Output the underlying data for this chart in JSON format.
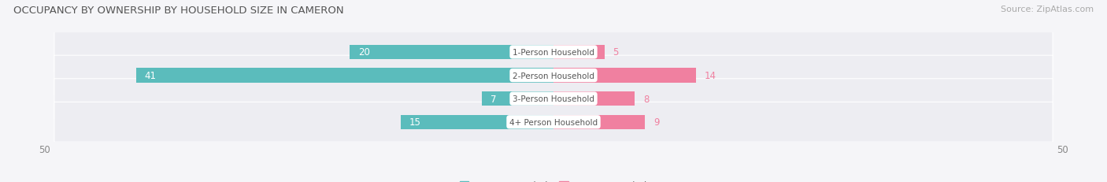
{
  "title": "OCCUPANCY BY OWNERSHIP BY HOUSEHOLD SIZE IN CAMERON",
  "source": "Source: ZipAtlas.com",
  "categories": [
    "1-Person Household",
    "2-Person Household",
    "3-Person Household",
    "4+ Person Household"
  ],
  "owner_values": [
    20,
    41,
    7,
    15
  ],
  "renter_values": [
    5,
    14,
    8,
    9
  ],
  "owner_color": "#5bbcbc",
  "renter_color": "#f080a0",
  "axis_max": 50,
  "title_fontsize": 9.5,
  "source_fontsize": 8,
  "bar_label_fontsize": 8.5,
  "category_fontsize": 7.5,
  "legend_fontsize": 8.5,
  "axis_tick_fontsize": 8.5,
  "bar_height": 0.62,
  "row_bg_color": "#ededf2",
  "fig_bg_color": "#f5f5f8"
}
